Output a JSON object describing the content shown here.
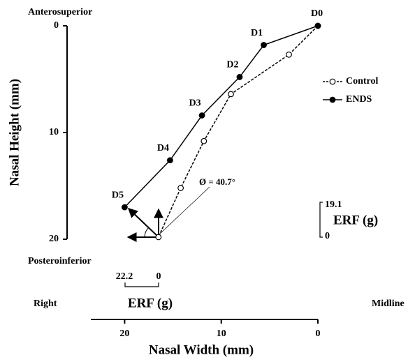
{
  "chart_data": {
    "type": "line",
    "x_label": "Nasal Width (mm)",
    "y_label": "Nasal Height (mm)",
    "xlim": [
      23.5,
      0
    ],
    "ylim": [
      20,
      0
    ],
    "xticks": [
      20,
      10,
      0
    ],
    "yticks": [
      0,
      10,
      20
    ],
    "legend": "right",
    "series": [
      {
        "name": "Control",
        "color": "#000000",
        "dashed": true,
        "filled": false,
        "x": [
          0,
          3.0,
          9.0,
          11.8,
          14.2,
          16.5
        ],
        "values": [
          0,
          2.7,
          6.4,
          10.8,
          15.2,
          19.8
        ]
      },
      {
        "name": "ENDS",
        "color": "#000000",
        "dashed": false,
        "filled": true,
        "x": [
          0,
          5.6,
          8.1,
          12.0,
          15.3,
          20.0
        ],
        "values": [
          0,
          1.8,
          4.8,
          8.4,
          12.6,
          17.0
        ],
        "point_labels": [
          "D0",
          "D1",
          "D2",
          "D3",
          "D4",
          "D5"
        ]
      }
    ],
    "annotations": [
      "Anterosuperior",
      "Posteroinferior",
      "Right",
      "Midline",
      "Ø = 40.7°"
    ],
    "scale_bars": [
      {
        "label": "ERF (g)",
        "max": 19.1,
        "min": 0
      },
      {
        "label": "ERF (g)",
        "max": 22.2,
        "min": 0
      }
    ]
  }
}
